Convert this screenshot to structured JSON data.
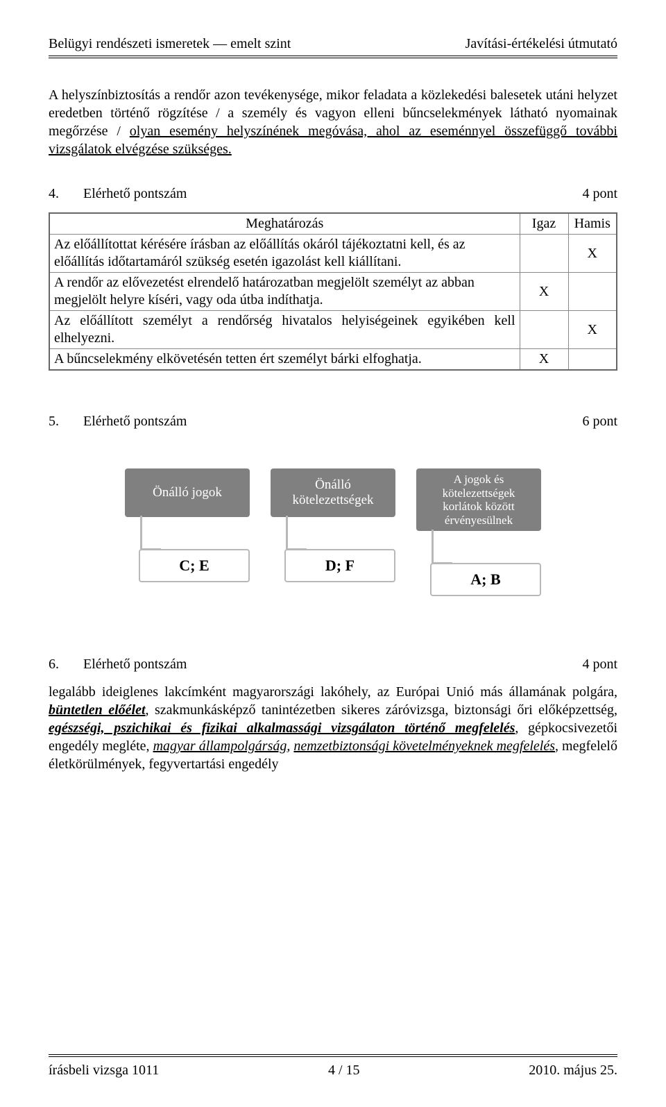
{
  "header": {
    "left": "Belügyi rendészeti ismeretek — emelt szint",
    "right": "Javítási-értékelési útmutató"
  },
  "intro": {
    "plain1": "A helyszínbiztosítás a rendőr azon tevékenysége, mikor feladata a közlekedési balesetek utáni helyzet eredetben történő rögzítése / a személy és vagyon elleni bűncselekmények látható nyomainak megőrzése / ",
    "under": "olyan esemény helyszínének megóvása, ahol az eseménnyel összefüggő további vizsgálatok elvégzése szükséges.",
    "tail": ""
  },
  "q4": {
    "num": "4.",
    "label": "Elérhető pontszám",
    "pts": "4 pont",
    "headers": {
      "m": "Meghatározás",
      "igaz": "Igaz",
      "hamis": "Hamis"
    },
    "rows": [
      {
        "text": "Az előállítottat kérésére írásban az előállítás okáról tájékoztatni kell, és az előállítás időtartamáról szükség esetén igazolást kell kiállítani.",
        "igaz": "",
        "hamis": "X"
      },
      {
        "text": "A rendőr az elővezetést elrendelő határozatban megjelölt személyt az abban megjelölt helyre kíséri, vagy oda útba indíthatja.",
        "igaz": "X",
        "hamis": ""
      },
      {
        "text": " Az előállított személyt a rendőrség hivatalos helyiségeinek egyikében kell elhelyezni.",
        "igaz": "",
        "hamis": "X"
      },
      {
        "text": "A bűncselekmény elkövetésén tetten ért személyt bárki elfoghatja.",
        "igaz": "X",
        "hamis": ""
      }
    ]
  },
  "q5": {
    "num": "5.",
    "label": "Elérhető pontszám",
    "pts": "6 pont",
    "cols": [
      {
        "top": "Önálló jogok",
        "bottom": "C; E"
      },
      {
        "top": "Önálló kötelezettségek",
        "bottom": "D; F"
      },
      {
        "top": "A jogok és kötelezettségek korlátok között érvényesülnek",
        "bottom": "A; B"
      }
    ]
  },
  "q6": {
    "num": "6.",
    "label": "Elérhető pontszám",
    "pts": "4 pont",
    "segments": [
      {
        "t": "legalább ideiglenes lakcímként magyarországi lakóhely, az Európai Unió más államának polgára, ",
        "cls": ""
      },
      {
        "t": "büntetlen előélet",
        "cls": "bold-under"
      },
      {
        "t": ", szakmunkásképző tanintézetben sikeres záróvizsga, biztonsági őri előképzettség, ",
        "cls": ""
      },
      {
        "t": "egészségi, pszichikai és fizikai alkalmassági vizsgálaton történő megfelelés",
        "cls": "bold-under"
      },
      {
        "t": ", gépkocsivezetői engedély megléte, ",
        "cls": ""
      },
      {
        "t": "magyar állampolgárság",
        "cls": "bold-under-n underline"
      },
      {
        "t": ", ",
        "cls": ""
      },
      {
        "t": "nemzetbiztonsági követelményeknek megfelelés",
        "cls": "bold-under-n underline"
      },
      {
        "t": ", megfelelő életkörülmények, fegyvertartási engedély",
        "cls": ""
      }
    ]
  },
  "footer": {
    "left": "írásbeli vizsga 1011",
    "mid": "4 / 15",
    "right": "2010. május 25."
  }
}
